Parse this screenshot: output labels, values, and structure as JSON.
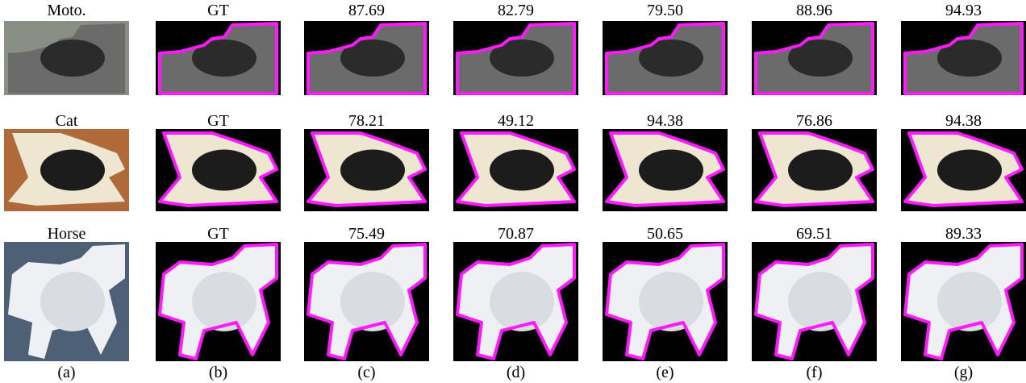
{
  "rows": [
    {
      "label": "Moto.",
      "headers": [
        "GT",
        "87.69",
        "82.79",
        "79.50",
        "88.96",
        "94.93"
      ]
    },
    {
      "label": "Cat",
      "headers": [
        "GT",
        "78.21",
        "49.12",
        "94.38",
        "76.86",
        "94.38"
      ]
    },
    {
      "label": "Horse",
      "headers": [
        "GT",
        "75.49",
        "70.87",
        "50.65",
        "69.51",
        "89.33"
      ]
    }
  ],
  "column_labels": [
    "(a)",
    "(b)",
    "(c)",
    "(d)",
    "(e)",
    "(f)",
    "(g)"
  ]
}
